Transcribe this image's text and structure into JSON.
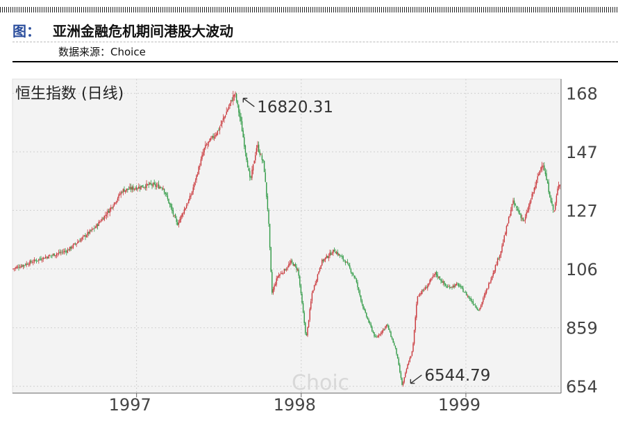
{
  "header": {
    "label": "图：",
    "title": "亚洲金融危机期间港股大波动",
    "source": "数据来源：Choice"
  },
  "colors": {
    "up": "#c9363a",
    "down": "#2f9a45",
    "plot_bg": "#f3f3f3",
    "grid": "#cfcfcf"
  },
  "chart_data": {
    "type": "candlestick",
    "title": "恒生指数 (日线)",
    "watermark": "Choic",
    "x_ticks": [
      "1997",
      "1998",
      "1999"
    ],
    "y_ticks": [
      "168",
      "147",
      "127",
      "106",
      "859",
      "654"
    ],
    "y_tick_values": [
      16800,
      14750,
      12700,
      10650,
      8590,
      6540
    ],
    "ylim": [
      6300,
      17300
    ],
    "grid": true,
    "annotations": [
      {
        "text": "16820.31",
        "date": "1997-08-07",
        "value": 16820.31
      },
      {
        "text": "6544.79",
        "date": "1998-08-13",
        "value": 6544.79
      }
    ],
    "date_range": [
      "1996-04-01",
      "1999-07-31"
    ],
    "series": [
      {
        "values": [
          [
            "1996-04-01",
            10650
          ],
          [
            "1996-06-01",
            11000
          ],
          [
            "1996-08-01",
            11300
          ],
          [
            "1996-10-01",
            12100
          ],
          [
            "1996-11-01",
            12700
          ],
          [
            "1996-12-01",
            13400
          ],
          [
            "1997-01-01",
            13500
          ],
          [
            "1997-02-01",
            13600
          ],
          [
            "1997-03-01",
            13500
          ],
          [
            "1997-04-01",
            12200
          ],
          [
            "1997-05-01",
            13200
          ],
          [
            "1997-06-01",
            14900
          ],
          [
            "1997-07-01",
            15500
          ],
          [
            "1997-08-07",
            16820
          ],
          [
            "1997-08-20",
            15800
          ],
          [
            "1997-09-10",
            13700
          ],
          [
            "1997-09-25",
            15000
          ],
          [
            "1997-10-10",
            14300
          ],
          [
            "1997-10-20",
            12500
          ],
          [
            "1997-10-28",
            9800
          ],
          [
            "1997-11-10",
            10400
          ],
          [
            "1997-11-25",
            10600
          ],
          [
            "1997-12-10",
            10900
          ],
          [
            "1997-12-25",
            10600
          ],
          [
            "1998-01-12",
            8200
          ],
          [
            "1998-01-25",
            9800
          ],
          [
            "1998-02-15",
            10900
          ],
          [
            "1998-03-15",
            11300
          ],
          [
            "1998-04-10",
            10900
          ],
          [
            "1998-05-01",
            10300
          ],
          [
            "1998-05-20",
            9200
          ],
          [
            "1998-06-15",
            8200
          ],
          [
            "1998-07-10",
            8700
          ],
          [
            "1998-07-30",
            7800
          ],
          [
            "1998-08-13",
            6545
          ],
          [
            "1998-08-25",
            7300
          ],
          [
            "1998-09-05",
            7800
          ],
          [
            "1998-09-15",
            9700
          ],
          [
            "1998-10-05",
            10000
          ],
          [
            "1998-10-25",
            10500
          ],
          [
            "1998-11-20",
            10000
          ],
          [
            "1998-12-15",
            10100
          ],
          [
            "1999-01-10",
            9600
          ],
          [
            "1999-01-30",
            9200
          ],
          [
            "1999-02-25",
            10300
          ],
          [
            "1999-03-20",
            11300
          ],
          [
            "1999-04-15",
            13000
          ],
          [
            "1999-05-10",
            12300
          ],
          [
            "1999-06-10",
            13900
          ],
          [
            "1999-06-20",
            14400
          ],
          [
            "1999-07-05",
            13300
          ],
          [
            "1999-07-15",
            12600
          ],
          [
            "1999-07-25",
            13600
          ],
          [
            "1999-07-31",
            13700
          ]
        ]
      }
    ]
  }
}
